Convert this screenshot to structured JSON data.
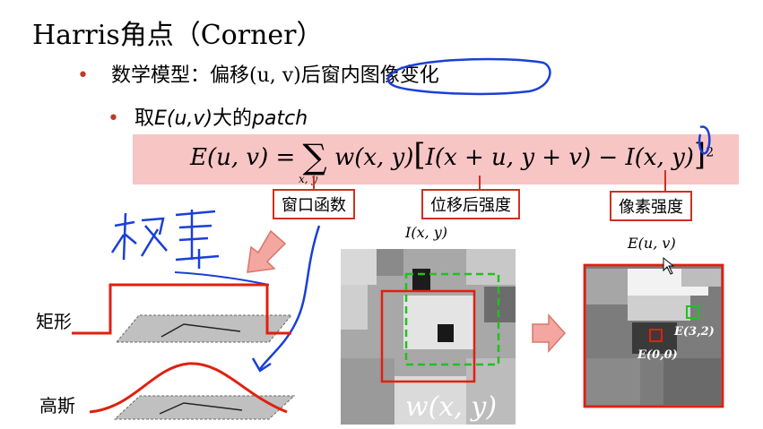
{
  "title": "Harris角点（Corner）",
  "bullet1": "数学模型：偏移(u, v)后窗内图像变化",
  "bullet2_prefix": "取",
  "bullet2_math": "E(u,v)",
  "bullet2_middle": "大的",
  "bullet2_word": "patch",
  "formula": {
    "lhs": "E(u, v) = ",
    "sigma": "∑",
    "sub": "x, y",
    "w": "w(x, y)",
    "body": "I(x + u, y + v) − I(x, y)",
    "exp": "2"
  },
  "labels": {
    "window": "窗口函数",
    "shifted": "位移后强度",
    "intensity": "像素强度"
  },
  "handwriting": "权重",
  "window_types": {
    "rect": "矩形",
    "gauss": "高斯"
  },
  "image_labels": {
    "ixy": "I(x, y)",
    "wxy": "w(x, y)",
    "euv": "E(u, v)",
    "e00": "E(0,0)",
    "e32": "E(3,2)"
  }
}
